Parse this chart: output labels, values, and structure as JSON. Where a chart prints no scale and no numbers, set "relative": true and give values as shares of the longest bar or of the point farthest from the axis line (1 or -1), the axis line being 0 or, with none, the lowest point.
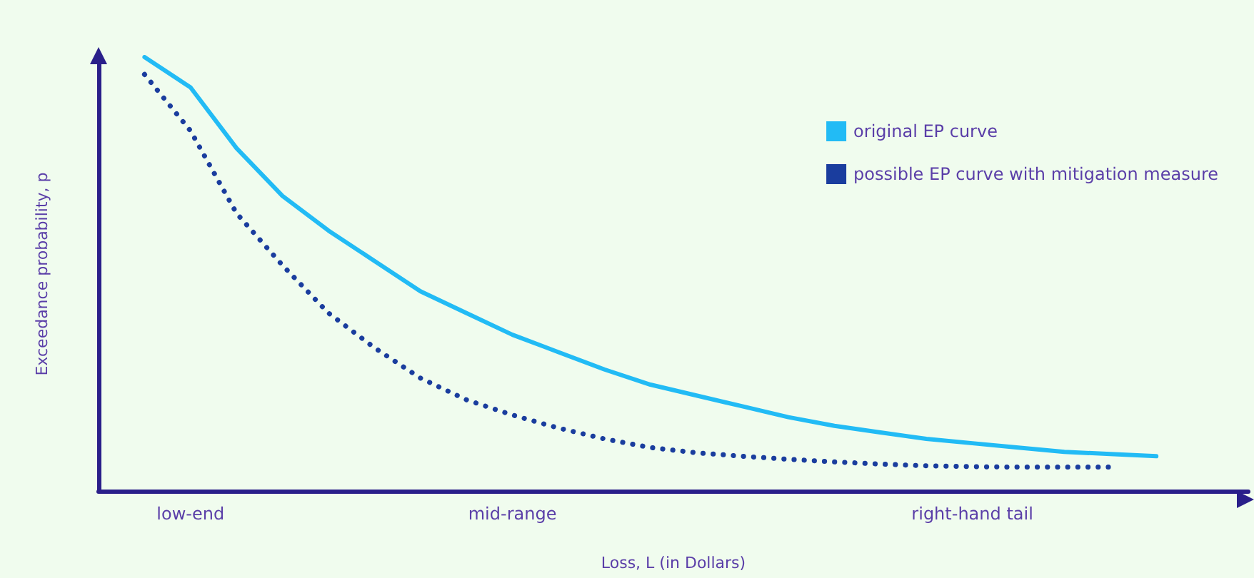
{
  "chart_data": {
    "type": "line",
    "relative": true,
    "xlabel": "Loss, L (in Dollars)",
    "ylabel": "Exceedance probability, p",
    "categories": [
      null,
      null,
      "low-end",
      null,
      null,
      null,
      null,
      null,
      null,
      "mid-range",
      null,
      null,
      null,
      null,
      null,
      null,
      null,
      null,
      null,
      "right-hand tail",
      null,
      null,
      null,
      null,
      null,
      null
    ],
    "tick_labels": "x",
    "grid": false,
    "legend": "top right",
    "marker": "none",
    "series": [
      {
        "name": "original EP curve",
        "color": "#22bbf5",
        "line_style": "solid",
        "values": [
          null,
          1,
          0.93,
          0.79,
          0.68,
          0.6,
          0.53,
          0.46,
          0.41,
          0.36,
          0.32,
          0.28,
          0.245,
          0.22,
          0.195,
          0.17,
          0.15,
          0.135,
          0.12,
          0.11,
          0.1,
          0.09,
          0.085,
          0.08,
          null,
          null
        ]
      },
      {
        "name": "possible EP curve with mitigation measure",
        "color": "#1a3d9e",
        "line_style": "dotted",
        "values": [
          null,
          0.96,
          0.83,
          0.64,
          0.52,
          0.41,
          0.33,
          0.26,
          0.21,
          0.175,
          0.145,
          0.12,
          0.1,
          0.088,
          0.08,
          0.073,
          0.067,
          0.062,
          0.058,
          0.056,
          0.055,
          0.055,
          0.055,
          null,
          null,
          null
        ]
      }
    ]
  }
}
